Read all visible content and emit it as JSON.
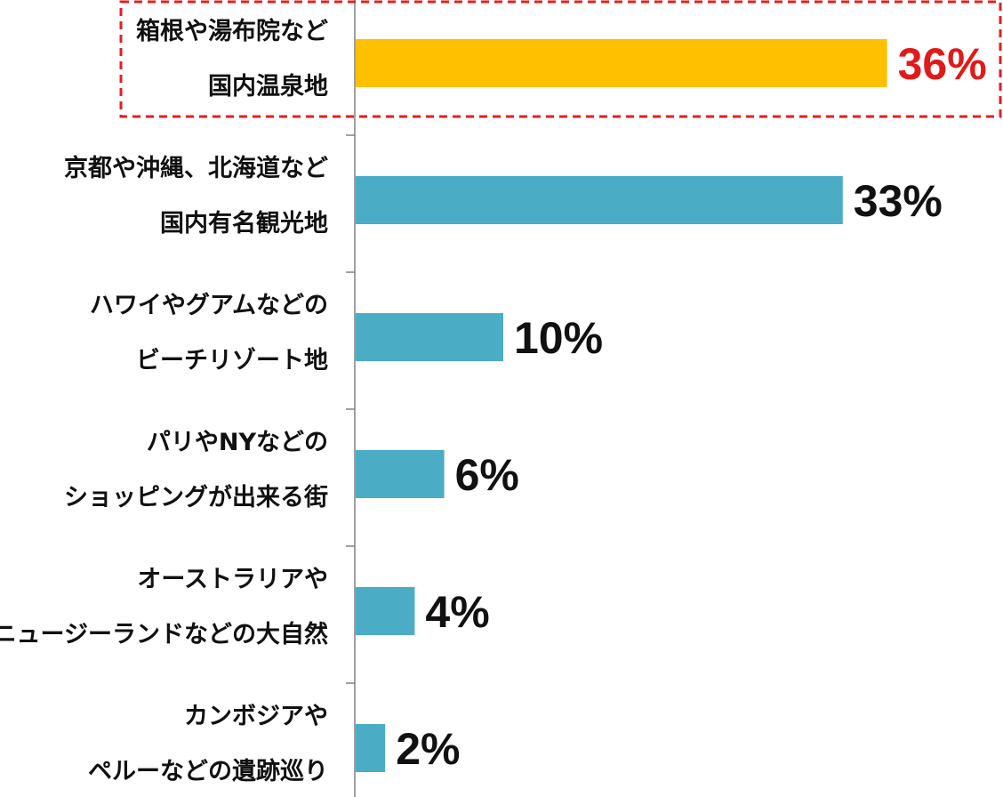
{
  "chart_data": {
    "type": "bar",
    "orientation": "horizontal",
    "categories": [
      [
        "箱根や湯布院など",
        "国内温泉地"
      ],
      [
        "京都や沖縄、北海道など",
        "国内有名観光地"
      ],
      [
        "ハワイやグアムなどの",
        "ビーチリゾート地"
      ],
      [
        "パリやNYなどの",
        "ショッピングが出来る街"
      ],
      [
        "オーストラリアや",
        "ニュージーランドなどの大自然"
      ],
      [
        "カンボジアや",
        "ペルーなどの遺跡巡り"
      ]
    ],
    "values": [
      36,
      33,
      10,
      6,
      4,
      2
    ],
    "value_labels": [
      "36%",
      "33%",
      "10%",
      "6%",
      "4%",
      "2%"
    ],
    "highlight_index": 0,
    "colors": {
      "bar": "#4bacc6",
      "highlight_bar": "#ffc000",
      "highlight_label": "#e11919",
      "label": "#111111",
      "highlight_box": "#e02020",
      "axis": "#808080"
    }
  }
}
